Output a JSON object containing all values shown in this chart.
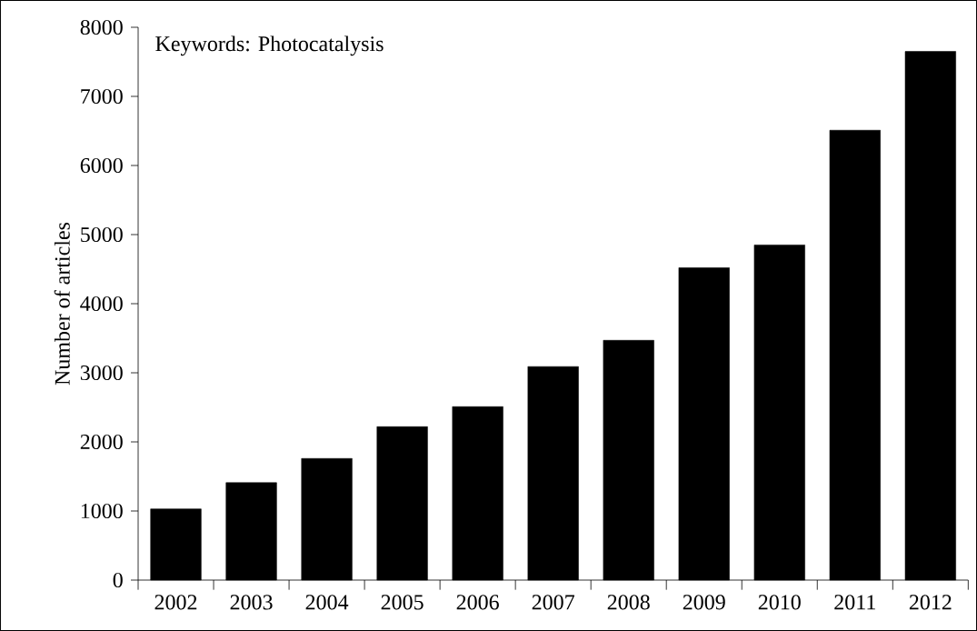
{
  "chart_data": {
    "type": "bar",
    "ylabel": "Number of articles",
    "annotations": [
      "Keywords: Photocatalysis"
    ],
    "categories": [
      "2002",
      "2003",
      "2004",
      "2005",
      "2006",
      "2007",
      "2008",
      "2009",
      "2010",
      "2011",
      "2012"
    ],
    "values": [
      1030,
      1410,
      1760,
      2220,
      2510,
      3090,
      3470,
      4520,
      4850,
      6510,
      7650
    ],
    "color": "#000000",
    "ylim": [
      0,
      8000
    ],
    "yticks": [
      0,
      1000,
      2000,
      3000,
      4000,
      5000,
      6000,
      7000,
      8000
    ]
  }
}
